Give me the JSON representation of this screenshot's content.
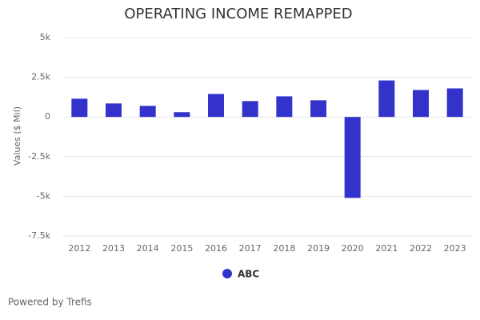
{
  "chart_data": {
    "type": "bar",
    "title": "OPERATING INCOME REMAPPED",
    "y_label": "Values ($ Mil)",
    "categories": [
      "2012",
      "2013",
      "2014",
      "2015",
      "2016",
      "2017",
      "2018",
      "2019",
      "2020",
      "2021",
      "2022",
      "2023"
    ],
    "series": [
      {
        "name": "ABC",
        "color": "#3333cc",
        "values": [
          1150,
          850,
          700,
          300,
          1450,
          1000,
          1300,
          1050,
          -5100,
          2300,
          1700,
          1800
        ]
      }
    ],
    "ylim": [
      -7500,
      5000
    ],
    "yticks": [
      {
        "value": -7500,
        "label": "-7.5k"
      },
      {
        "value": -5000,
        "label": "-5k"
      },
      {
        "value": -2500,
        "label": "-2.5k"
      },
      0,
      {
        "value": 2500,
        "label": "2.5k"
      },
      {
        "value": 5000,
        "label": "5k"
      }
    ],
    "grid": true,
    "footer": "Powered by Trefis"
  }
}
